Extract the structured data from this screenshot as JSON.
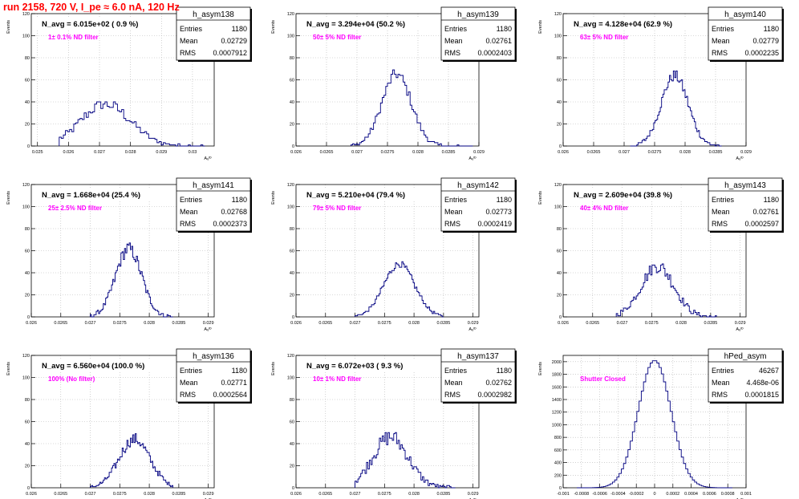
{
  "run_title": "run 2158,   720 V, I_pe ≈ 6.0 nA, 120 Hz",
  "colors": {
    "histogram_line": "#000080",
    "annotation": "#ff00ff",
    "title": "#ff0000",
    "grid": "#b4b4b4"
  },
  "chart_data": [
    {
      "type": "histogram",
      "name": "h_asym138",
      "title": "N_avg = 6.015e+02 ( 0.9 %)",
      "annotation": "1± 0.1% ND filter",
      "ylabel": "Events",
      "xlabel": "Aᵤᴵᴰ",
      "stats": {
        "Entries": "1180",
        "Mean": "0.02729",
        "RMS": "0.0007912"
      },
      "xlim": [
        0.0248,
        0.0307
      ],
      "ylim": [
        0,
        120
      ],
      "xticks": [
        0.025,
        0.026,
        0.027,
        0.028,
        0.029,
        0.03
      ],
      "xticklabels": [
        "0.025",
        "0.026",
        "0.027",
        "0.028",
        "0.029",
        "0.03"
      ],
      "yticks": [
        0,
        20,
        40,
        60,
        80,
        100,
        120
      ],
      "bin_edges": [
        0.0257,
        0.0304
      ],
      "shape": {
        "peak": 38,
        "center": 0.0272,
        "sigma": 0.0008,
        "jitter": 5
      }
    },
    {
      "type": "histogram",
      "name": "h_asym139",
      "title": "N_avg = 3.294e+04 (50.2 %)",
      "annotation": "50± 5% ND filter",
      "ylabel": "Events",
      "xlabel": "Aᵤᴵᴰ",
      "stats": {
        "Entries": "1180",
        "Mean": "0.02761",
        "RMS": "0.0002403"
      },
      "xlim": [
        0.026,
        0.029
      ],
      "ylim": [
        0,
        120
      ],
      "xticks": [
        0.026,
        0.0265,
        0.027,
        0.0275,
        0.028,
        0.0285,
        0.029
      ],
      "xticklabels": [
        "0.026",
        "0.0265",
        "0.027",
        "0.0275",
        "0.028",
        "0.0285",
        "0.029"
      ],
      "yticks": [
        0,
        20,
        40,
        60,
        80,
        100,
        120
      ],
      "bin_edges": [
        0.0269,
        0.0289
      ],
      "shape": {
        "peak": 65,
        "center": 0.02765,
        "sigma": 0.00024,
        "jitter": 5
      }
    },
    {
      "type": "histogram",
      "name": "h_asym140",
      "title": "N_avg = 4.128e+04 (62.9 %)",
      "annotation": "63± 5% ND filter",
      "ylabel": "Events",
      "xlabel": "Aᵤᴵᴰ",
      "stats": {
        "Entries": "1180",
        "Mean": "0.02779",
        "RMS": "0.0002235"
      },
      "xlim": [
        0.026,
        0.029
      ],
      "ylim": [
        0,
        120
      ],
      "xticks": [
        0.026,
        0.0265,
        0.027,
        0.0275,
        0.028,
        0.0285,
        0.029
      ],
      "xticklabels": [
        "0.026",
        "0.0265",
        "0.027",
        "0.0275",
        "0.028",
        "0.0285",
        "0.029"
      ],
      "yticks": [
        0,
        20,
        40,
        60,
        80,
        100,
        120
      ],
      "bin_edges": [
        0.0271,
        0.0286
      ],
      "shape": {
        "peak": 64,
        "center": 0.02783,
        "sigma": 0.00022,
        "jitter": 5
      }
    },
    {
      "type": "histogram",
      "name": "h_asym141",
      "title": "N_avg = 1.668e+04 (25.4 %)",
      "annotation": "25± 2.5% ND filter",
      "ylabel": "Events",
      "xlabel": "Aᵤᴵᴰ",
      "stats": {
        "Entries": "1180",
        "Mean": "0.02768",
        "RMS": "0.0002373"
      },
      "xlim": [
        0.026,
        0.0291
      ],
      "ylim": [
        0,
        120
      ],
      "xticks": [
        0.026,
        0.0265,
        0.027,
        0.0275,
        0.028,
        0.0285,
        0.029
      ],
      "xticklabels": [
        "0.026",
        "0.0265",
        "0.027",
        "0.0275",
        "0.028",
        "0.0285",
        "0.029"
      ],
      "yticks": [
        0,
        20,
        40,
        60,
        80,
        100,
        120
      ],
      "bin_edges": [
        0.027,
        0.0284
      ],
      "shape": {
        "peak": 62,
        "center": 0.02765,
        "sigma": 0.00022,
        "jitter": 6
      }
    },
    {
      "type": "histogram",
      "name": "h_asym142",
      "title": "N_avg = 5.210e+04 (79.4 %)",
      "annotation": "79± 5% ND filter",
      "ylabel": "Events",
      "xlabel": "Aᵤᴵᴰ",
      "stats": {
        "Entries": "1180",
        "Mean": "0.02773",
        "RMS": "0.0002419"
      },
      "xlim": [
        0.026,
        0.0291
      ],
      "ylim": [
        0,
        120
      ],
      "xticks": [
        0.026,
        0.0265,
        0.027,
        0.0275,
        0.028,
        0.0285,
        0.029
      ],
      "xticklabels": [
        "0.026",
        "0.0265",
        "0.027",
        "0.0275",
        "0.028",
        "0.0285",
        "0.029"
      ],
      "yticks": [
        0,
        20,
        40,
        60,
        80,
        100,
        120
      ],
      "bin_edges": [
        0.027,
        0.0285
      ],
      "shape": {
        "peak": 48,
        "center": 0.02775,
        "sigma": 0.00026,
        "jitter": 3
      }
    },
    {
      "type": "histogram",
      "name": "h_asym143",
      "title": "N_avg = 2.609e+04 (39.8 %)",
      "annotation": "40± 4% ND filter",
      "ylabel": "Events",
      "xlabel": "Aᵤᴵᴰ",
      "stats": {
        "Entries": "1180",
        "Mean": "0.02761",
        "RMS": "0.0002597"
      },
      "xlim": [
        0.026,
        0.0291
      ],
      "ylim": [
        0,
        120
      ],
      "xticks": [
        0.026,
        0.0265,
        0.027,
        0.0275,
        0.028,
        0.0285,
        0.029
      ],
      "xticklabels": [
        "0.026",
        "0.0265",
        "0.027",
        "0.0275",
        "0.028",
        "0.0285",
        "0.029"
      ],
      "yticks": [
        0,
        20,
        40,
        60,
        80,
        100,
        120
      ],
      "bin_edges": [
        0.0269,
        0.0286
      ],
      "shape": {
        "peak": 46,
        "center": 0.0276,
        "sigma": 0.00028,
        "jitter": 6
      }
    },
    {
      "type": "histogram",
      "name": "h_asym136",
      "title": "N_avg = 6.560e+04 (100.0 %)",
      "annotation": "100% (No filter)",
      "ylabel": "Events",
      "xlabel": "Aᵤᴵᴰ",
      "stats": {
        "Entries": "1180",
        "Mean": "0.02771",
        "RMS": "0.0002564"
      },
      "xlim": [
        0.026,
        0.0291
      ],
      "ylim": [
        0,
        120
      ],
      "xticks": [
        0.026,
        0.0265,
        0.027,
        0.0275,
        0.028,
        0.0285,
        0.029
      ],
      "xticklabels": [
        "0.026",
        "0.0265",
        "0.027",
        "0.0275",
        "0.028",
        "0.0285",
        "0.029"
      ],
      "yticks": [
        0,
        20,
        40,
        60,
        80,
        100,
        120
      ],
      "bin_edges": [
        0.027,
        0.0284
      ],
      "shape": {
        "peak": 44,
        "center": 0.02775,
        "sigma": 0.00026,
        "jitter": 5
      }
    },
    {
      "type": "histogram",
      "name": "h_asym137",
      "title": "N_avg = 6.072e+03 ( 9.3 %)",
      "annotation": "10± 1% ND filter",
      "ylabel": "Events",
      "xlabel": "Aᵤᴵᴰ",
      "stats": {
        "Entries": "1180",
        "Mean": "0.02762",
        "RMS": "0.0002982"
      },
      "xlim": [
        0.026,
        0.0291
      ],
      "ylim": [
        0,
        120
      ],
      "xticks": [
        0.026,
        0.0265,
        0.027,
        0.0275,
        0.028,
        0.0285,
        0.029
      ],
      "xticklabels": [
        "0.026",
        "0.0265",
        "0.027",
        "0.0275",
        "0.028",
        "0.0285",
        "0.029"
      ],
      "yticks": [
        0,
        20,
        40,
        60,
        80,
        100,
        120
      ],
      "bin_edges": [
        0.027,
        0.0287
      ],
      "shape": {
        "peak": 46,
        "center": 0.0276,
        "sigma": 0.0003,
        "jitter": 7
      }
    },
    {
      "type": "histogram",
      "name": "hPed_asym",
      "title": "",
      "annotation": "Shutter Closed",
      "ylabel": "Events",
      "xlabel": "Aᵤᴵᴰ",
      "stats": {
        "Entries": "46267",
        "Mean": "4.468e-06",
        "RMS": "0.0001815"
      },
      "xlim": [
        -0.001,
        0.001
      ],
      "ylim": [
        0,
        2100
      ],
      "xticks": [
        -0.001,
        -0.0008,
        -0.0006,
        -0.0004,
        -0.0002,
        0,
        0.0002,
        0.0004,
        0.0006,
        0.0008,
        0.001
      ],
      "xticklabels": [
        "-0.001",
        "-0.0008",
        "-0.0006",
        "-0.0004",
        "-0.0002",
        "0",
        "0.0002",
        "0.0004",
        "0.0006",
        "0.0008",
        "0.001"
      ],
      "yticks": [
        0,
        200,
        400,
        600,
        800,
        1000,
        1200,
        1400,
        1600,
        1800,
        2000
      ],
      "bin_edges": [
        -0.00085,
        0.00085
      ],
      "shape": {
        "peak": 2020,
        "center": 0.0,
        "sigma": 0.00018,
        "jitter": 0
      }
    }
  ]
}
